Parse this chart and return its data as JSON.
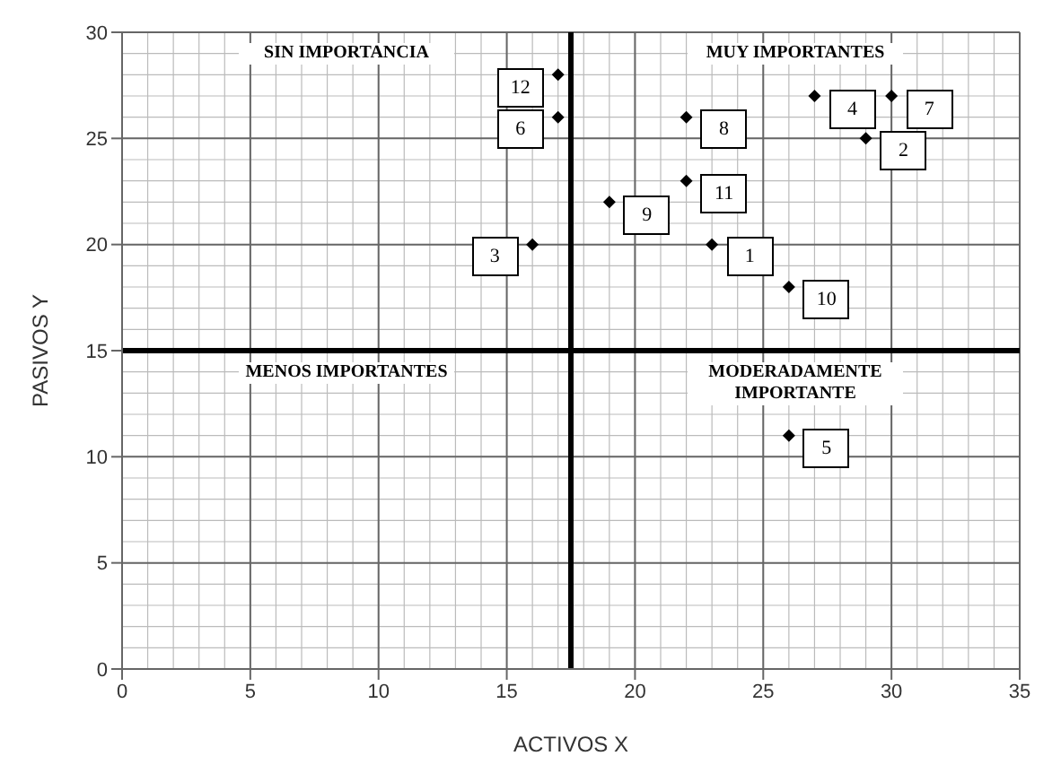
{
  "chart_data": {
    "type": "scatter",
    "xlabel": "ACTIVOS  X",
    "ylabel": "PASIVOS  Y",
    "x": [
      23,
      29,
      16,
      27,
      26,
      17,
      30,
      22,
      19,
      26,
      22,
      17
    ],
    "values": [
      20,
      25,
      20,
      27,
      11,
      26,
      27,
      26,
      22,
      18,
      23,
      28
    ],
    "color": "#000000",
    "marker": "diamond",
    "xlim": [
      0,
      35
    ],
    "xticks": [
      0,
      5,
      10,
      15,
      20,
      25,
      30,
      35
    ],
    "ylim": [
      0,
      30
    ],
    "yticks": [
      0,
      5,
      10,
      15,
      20,
      25,
      30
    ],
    "grid": true,
    "ref_lines": [
      {
        "axis": "x",
        "value": 17.5,
        "color": "#000000"
      },
      {
        "axis": "y",
        "value": 15,
        "color": "#000000"
      }
    ],
    "annotations": [
      "SIN IMPORTANCIA",
      "MUY IMPORTANTES",
      "MENOS IMPORTANTES",
      "MODERADAMENTE IMPORTANTE",
      {
        "text": "1",
        "x": 23,
        "y": 20
      },
      {
        "text": "2",
        "x": 29,
        "y": 25
      },
      {
        "text": "3",
        "x": 16,
        "y": 20
      },
      {
        "text": "4",
        "x": 27,
        "y": 27
      },
      {
        "text": "5",
        "x": 26,
        "y": 11
      },
      {
        "text": "6",
        "x": 17,
        "y": 26
      },
      {
        "text": "7",
        "x": 30,
        "y": 27
      },
      {
        "text": "8",
        "x": 22,
        "y": 26
      },
      {
        "text": "9",
        "x": 19,
        "y": 22
      },
      {
        "text": "10",
        "x": 26,
        "y": 18
      },
      {
        "text": "11",
        "x": 22,
        "y": 23
      },
      {
        "text": "12",
        "x": 17,
        "y": 28
      }
    ]
  }
}
